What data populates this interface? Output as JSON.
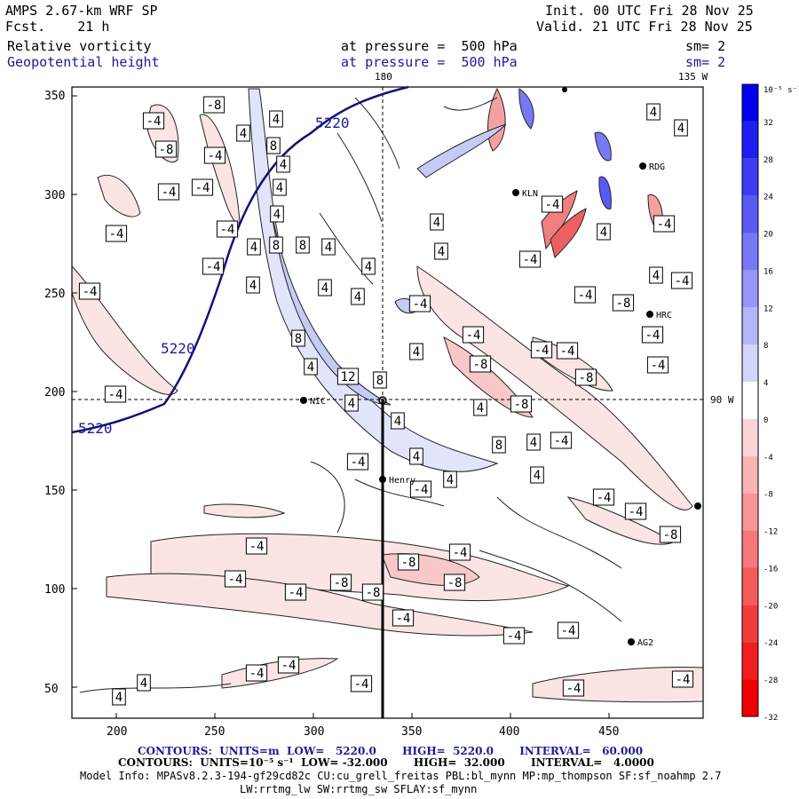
{
  "header": {
    "model": "AMPS 2.67-km WRF SP",
    "forecast": "Fcst.    21 h",
    "init": "Init. 00 UTC Fri 28 Nov 25",
    "valid": "Valid. 21 UTC Fri 28 Nov 25",
    "field1_name": "Relative vorticity",
    "field1_level": "at pressure =  500 hPa",
    "field1_smooth": "sm= 2",
    "field2_name": "Geopotential height",
    "field2_level": "at pressure =  500 hPa",
    "field2_smooth": "sm= 2"
  },
  "map": {
    "meridian_180": "180",
    "meridian_135W": "135 W",
    "meridian_90W": "90 W",
    "x_ticks": [
      "200",
      "250",
      "300",
      "350",
      "400",
      "450"
    ],
    "y_ticks": [
      "350",
      "300",
      "250",
      "200",
      "150",
      "100",
      "50"
    ],
    "height_labels": [
      "5220",
      "5220",
      "5220"
    ],
    "vort_labels": {
      "neg4": "-4",
      "neg8": "-8",
      "pos4": "4",
      "pos8": "8",
      "pos12": "12"
    },
    "stations": [
      "RDG",
      "KLN",
      "HRC",
      "NIC",
      "Henry",
      "AG2"
    ]
  },
  "colorbar": {
    "unit": "10⁻⁵ s⁻¹",
    "labels": [
      "32",
      "28",
      "24",
      "20",
      "16",
      "12",
      "8",
      "4",
      "0",
      "-4",
      "-8",
      "-12",
      "-16",
      "-20",
      "-24",
      "-28",
      "-32"
    ],
    "colors": [
      "#0000ee",
      "#1e1ef0",
      "#3c3cf2",
      "#5a5af4",
      "#7878f6",
      "#9696f8",
      "#b4b4fa",
      "#d4d4fc",
      "#ffffff",
      "#fcd4d4",
      "#fab4b4",
      "#f89696",
      "#f67878",
      "#f45a5a",
      "#f23c3c",
      "#f01e1e",
      "#ee0000"
    ]
  },
  "footer": {
    "contours1": "CONTOURS:  UNITS=m  LOW=   5220.0       HIGH=  5220.0       INTERVAL=   60.000",
    "contours2": "CONTOURS:  UNITS=10⁻⁵ s⁻¹  LOW= -32.000       HIGH=  32.000       INTERVAL=   4.0000",
    "model_info": "Model Info: MPASv8.2.3-194-gf29cd82c CU:cu_grell_freitas PBL:bl_mynn MP:mp_thompson SF:sf_noahmp 2.7",
    "model_info2": "LW:rrtmg_lw SW:rrtmg_sw SFLAY:sf_mynn"
  }
}
